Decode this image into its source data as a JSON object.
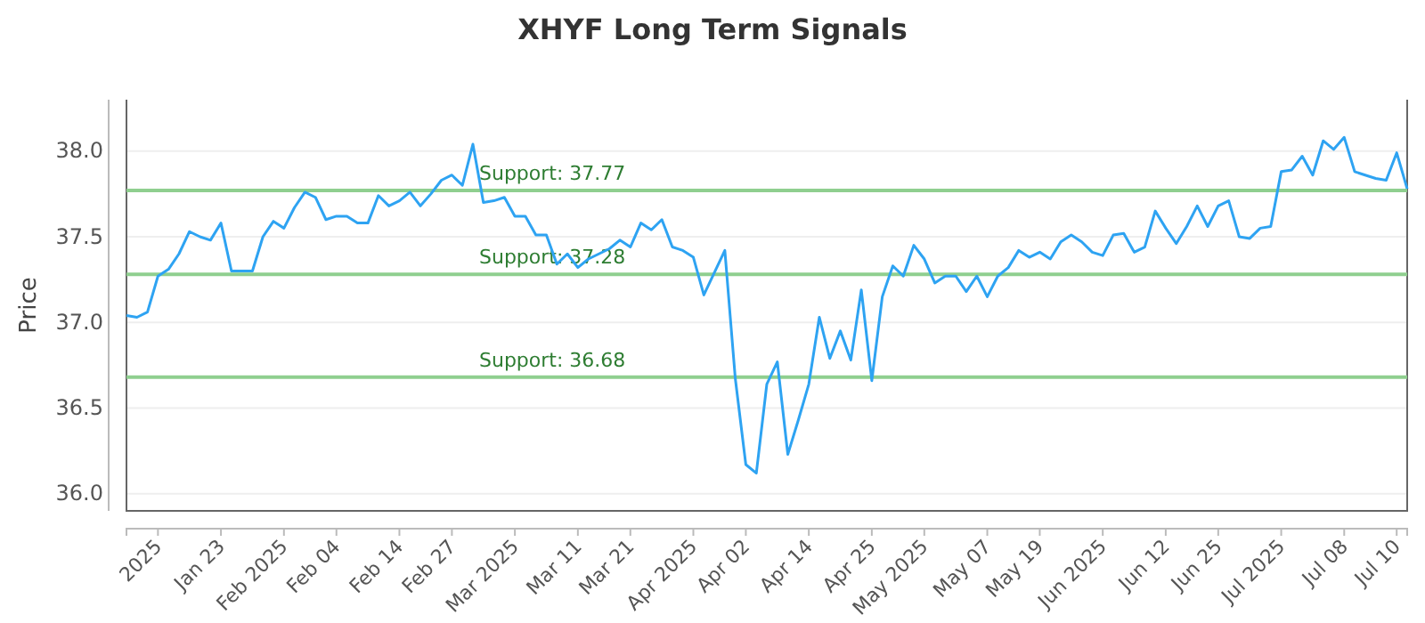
{
  "chart_data": {
    "type": "line",
    "title": "XHYF Long Term Signals",
    "ylabel": "Price",
    "categories": [
      null,
      null,
      null,
      "2025",
      null,
      null,
      null,
      null,
      null,
      "Jan 23",
      null,
      null,
      null,
      null,
      null,
      "Feb 2025",
      null,
      null,
      null,
      null,
      "Feb 04",
      null,
      null,
      null,
      null,
      null,
      "Feb 14",
      null,
      null,
      null,
      null,
      "Feb 27",
      null,
      null,
      null,
      null,
      null,
      "Mar 2025",
      null,
      null,
      null,
      null,
      null,
      "Mar 11",
      null,
      null,
      null,
      null,
      "Mar 21",
      null,
      null,
      null,
      null,
      null,
      "Apr 2025",
      null,
      null,
      null,
      null,
      "Apr 02",
      null,
      null,
      null,
      null,
      null,
      "Apr 14",
      null,
      null,
      null,
      null,
      null,
      "Apr 25",
      null,
      null,
      null,
      null,
      "May 2025",
      null,
      null,
      null,
      null,
      null,
      "May 07",
      null,
      null,
      null,
      null,
      "May 19",
      null,
      null,
      null,
      null,
      null,
      "Jun 2025",
      null,
      null,
      null,
      null,
      null,
      "Jun 12",
      null,
      null,
      null,
      null,
      "Jun 25",
      null,
      null,
      null,
      null,
      null,
      "Jul 2025",
      null,
      null,
      null,
      null,
      null,
      "Jul 08",
      null,
      null,
      null,
      null,
      "Jul 10",
      null
    ],
    "series": [
      {
        "color": "#2ea3f2",
        "values": [
          37.04,
          37.03,
          37.06,
          37.27,
          37.31,
          37.4,
          37.53,
          37.5,
          37.48,
          37.58,
          37.3,
          37.3,
          37.3,
          37.5,
          37.59,
          37.55,
          37.67,
          37.76,
          37.73,
          37.6,
          37.62,
          37.62,
          37.58,
          37.58,
          37.74,
          37.68,
          37.71,
          37.76,
          37.68,
          37.75,
          37.83,
          37.86,
          37.8,
          38.04,
          37.7,
          37.71,
          37.73,
          37.62,
          37.62,
          37.51,
          37.51,
          37.34,
          37.4,
          37.32,
          37.37,
          37.4,
          37.43,
          37.48,
          37.44,
          37.58,
          37.54,
          37.6,
          37.44,
          37.42,
          37.38,
          37.16,
          37.29,
          37.42,
          36.67,
          36.17,
          36.12,
          36.64,
          36.77,
          36.23,
          36.43,
          36.64,
          37.03,
          36.79,
          36.95,
          36.78,
          37.19,
          36.66,
          37.15,
          37.33,
          37.27,
          37.45,
          37.37,
          37.23,
          37.27,
          37.27,
          37.18,
          37.27,
          37.15,
          37.27,
          37.32,
          37.42,
          37.38,
          37.41,
          37.37,
          37.47,
          37.51,
          37.47,
          37.41,
          37.39,
          37.51,
          37.52,
          37.41,
          37.44,
          37.65,
          37.55,
          37.46,
          37.56,
          37.68,
          37.56,
          37.68,
          37.71,
          37.5,
          37.49,
          37.55,
          37.56,
          37.88,
          37.89,
          37.97,
          37.86,
          38.06,
          38.01,
          38.08,
          37.88,
          37.86,
          37.84,
          37.83,
          37.99,
          37.78
        ]
      }
    ],
    "ylim": [
      35.9,
      38.3
    ],
    "yticks": [
      {
        "value": 36,
        "label": "36.0"
      },
      36.5,
      {
        "value": 37,
        "label": "37.0"
      },
      37.5,
      {
        "value": 38,
        "label": "38.0"
      }
    ],
    "grid": "y",
    "marker": "none",
    "line_style": "solid",
    "ref_lines": [
      {
        "axis": "y",
        "value": 37.77,
        "label": "Support: 37.77",
        "color": "#8fcf8f"
      },
      {
        "axis": "y",
        "value": 37.28,
        "label": "Support: 37.28",
        "color": "#8fcf8f"
      },
      {
        "axis": "y",
        "value": 36.68,
        "label": "Support: 36.68",
        "color": "#8fcf8f"
      }
    ]
  }
}
